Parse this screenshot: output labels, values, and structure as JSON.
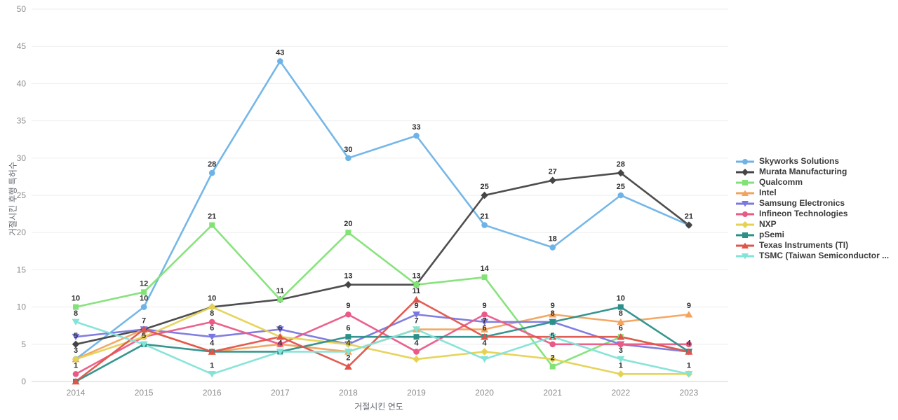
{
  "chart_data": {
    "type": "line",
    "title": "",
    "xlabel": "거절시킨 연도",
    "ylabel": "거절시킨 후행 특허수",
    "x": [
      2014,
      2015,
      2016,
      2017,
      2018,
      2019,
      2020,
      2021,
      2022,
      2023
    ],
    "ylim": [
      0,
      50
    ],
    "yticks": [
      0,
      5,
      10,
      15,
      20,
      25,
      30,
      35,
      40,
      45,
      50
    ],
    "grid": true,
    "legend_position": "right",
    "series": [
      {
        "name": "Skyworks Solutions",
        "color": "#6eb3e7",
        "marker": "circle",
        "values": [
          3,
          10,
          28,
          43,
          30,
          33,
          21,
          18,
          25,
          21
        ],
        "label_years": [
          2015,
          2016,
          2017,
          2018,
          2019,
          2020,
          2021,
          2022
        ]
      },
      {
        "name": "Murata Manufacturing",
        "color": "#454545",
        "marker": "diamond",
        "values": [
          5,
          7,
          10,
          11,
          13,
          13,
          25,
          27,
          28,
          21
        ],
        "label_years": [
          2014,
          2018,
          2020,
          2021,
          2022,
          2023
        ]
      },
      {
        "name": "Qualcomm",
        "color": "#82e276",
        "marker": "square",
        "values": [
          10,
          12,
          21,
          11,
          20,
          13,
          14,
          2,
          6,
          4
        ],
        "label_years": [
          2014,
          2015,
          2016,
          2017,
          2018,
          2019,
          2020,
          2021,
          2022
        ]
      },
      {
        "name": "Intel",
        "color": "#f3a35c",
        "marker": "triangle-up",
        "values": [
          3,
          7,
          4,
          5,
          4,
          7,
          7,
          9,
          8,
          9
        ],
        "label_years": [
          2014,
          2015,
          2020,
          2021,
          2022,
          2023
        ]
      },
      {
        "name": "Samsung Electronics",
        "color": "#7a77e0",
        "marker": "triangle-down",
        "values": [
          6,
          7,
          6,
          7,
          5,
          9,
          8,
          8,
          5,
          4
        ],
        "label_years": [
          2016,
          2019
        ]
      },
      {
        "name": "Infineon Technologies",
        "color": "#ea5a87",
        "marker": "circle",
        "values": [
          1,
          6,
          8,
          5,
          9,
          4,
          9,
          5,
          5,
          5
        ],
        "label_years": [
          2014,
          2016,
          2018,
          2019,
          2020,
          2021
        ]
      },
      {
        "name": "NXP",
        "color": "#e5d254",
        "marker": "diamond",
        "values": [
          3,
          6,
          10,
          6,
          5,
          3,
          4,
          3,
          1,
          1
        ],
        "label_years": [
          2016,
          2020,
          2022
        ]
      },
      {
        "name": "pSemi",
        "color": "#2b9089",
        "marker": "square",
        "values": [
          0,
          5,
          4,
          4,
          6,
          6,
          6,
          8,
          10,
          4
        ],
        "label_years": [
          2017,
          2018,
          2021,
          2022
        ]
      },
      {
        "name": "Texas Instruments (TI)",
        "color": "#e0544a",
        "marker": "triangle-up",
        "values": [
          0,
          7,
          4,
          6,
          2,
          11,
          6,
          6,
          6,
          4
        ],
        "label_years": [
          2016,
          2017,
          2018,
          2019,
          2020,
          2023
        ]
      },
      {
        "name": "TSMC (Taiwan Semiconductor ...",
        "color": "#82e3d7",
        "marker": "triangle-down",
        "values": [
          8,
          5,
          1,
          4,
          4,
          7,
          3,
          6,
          3,
          1
        ],
        "label_years": [
          2014,
          2015,
          2016,
          2018,
          2019,
          2022,
          2023
        ]
      }
    ],
    "colors": {
      "grid_line": "#ededed",
      "zero_line": "#ccd2e8",
      "tick_text": "#8c8c8c",
      "axis_title_text": "#666a73",
      "point_label_text": "#2f2f2f",
      "legend_text": "#3b3b3b",
      "background": "#ffffff"
    }
  }
}
